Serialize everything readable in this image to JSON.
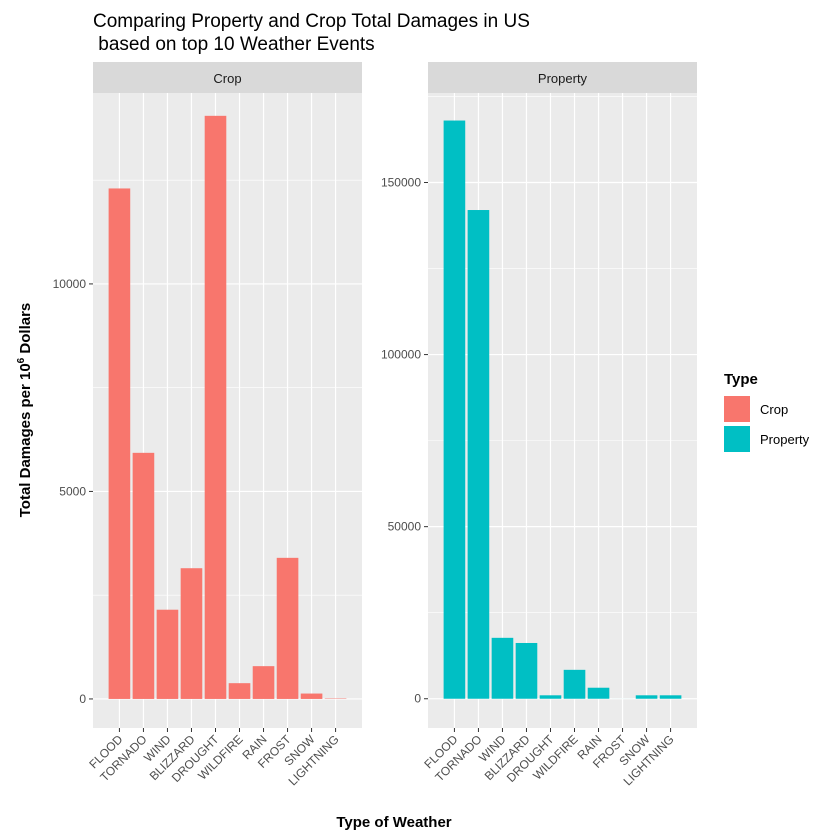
{
  "title_line1": "Comparing Property and Crop Total Damages in US",
  "title_line2": " based on top 10 Weather Events",
  "xlabel": "Type of Weather",
  "ylabel_main": "Total Damages per 10",
  "ylabel_sup": "6",
  "ylabel_tail": " Dollars",
  "legend": {
    "title": "Type",
    "items": [
      {
        "label": "Crop",
        "color": "#F8766D"
      },
      {
        "label": "Property",
        "color": "#00BFC4"
      }
    ]
  },
  "chart_data": {
    "type": "bar",
    "grid": true,
    "legend_position": "right",
    "categories": [
      "FLOOD",
      "TORNADO",
      "WIND",
      "BLIZZARD",
      "DROUGHT",
      "WILDFIRE",
      "RAIN",
      "FROST",
      "SNOW",
      "LIGHTNING"
    ],
    "panels": [
      {
        "strip": "Crop",
        "color": "#F8766D",
        "ylim": [
          -700,
          14600
        ],
        "yticks": [
          0,
          5000,
          10000
        ],
        "values": [
          12300,
          5930,
          2150,
          3150,
          14050,
          380,
          790,
          3400,
          130,
          10
        ]
      },
      {
        "strip": "Property",
        "color": "#00BFC4",
        "ylim": [
          -8500,
          176000
        ],
        "yticks": [
          0,
          50000,
          100000,
          150000
        ],
        "values": [
          168000,
          142000,
          17700,
          16200,
          1000,
          8400,
          3200,
          10,
          1000,
          1000
        ]
      }
    ]
  }
}
